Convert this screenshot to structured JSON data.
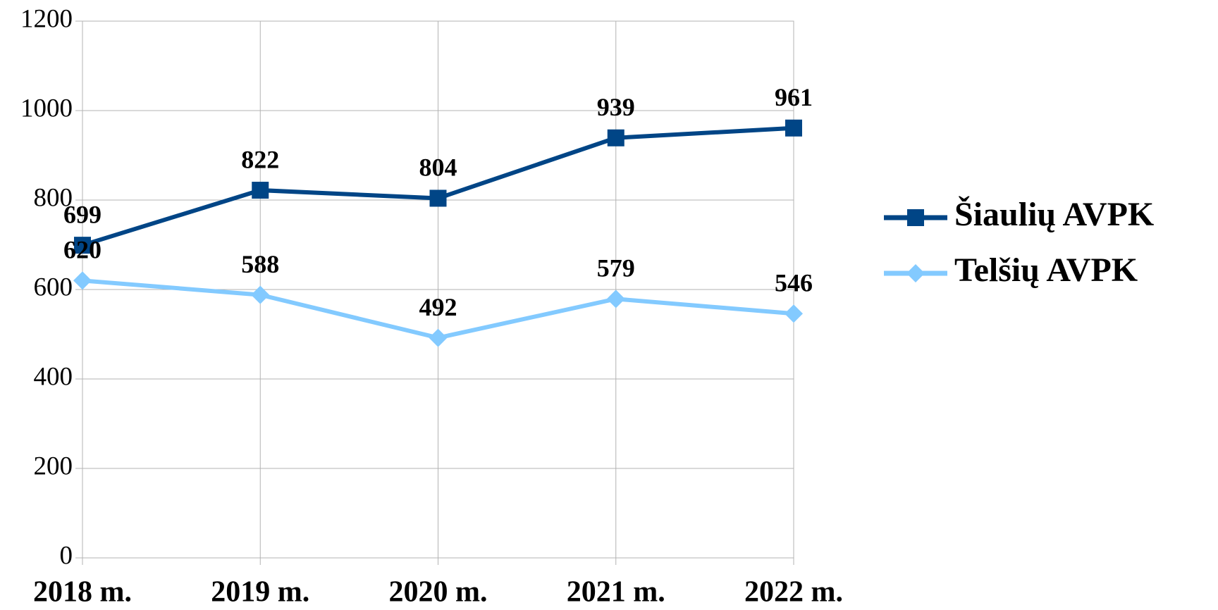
{
  "chart_data": {
    "type": "line",
    "categories": [
      "2018 m.",
      "2019 m.",
      "2020 m.",
      "2021 m.",
      "2022 m."
    ],
    "series": [
      {
        "name": "Šiaulių AVPK",
        "color": "#004586",
        "marker": "square",
        "values": [
          699,
          822,
          804,
          939,
          961
        ]
      },
      {
        "name": "Telšių AVPK",
        "color": "#83caff",
        "marker": "diamond",
        "values": [
          620,
          588,
          492,
          579,
          546
        ]
      }
    ],
    "ylim": [
      0,
      1200
    ],
    "yticks": [
      0,
      200,
      400,
      600,
      800,
      1000,
      1200
    ],
    "grid": true,
    "legend": "right"
  }
}
